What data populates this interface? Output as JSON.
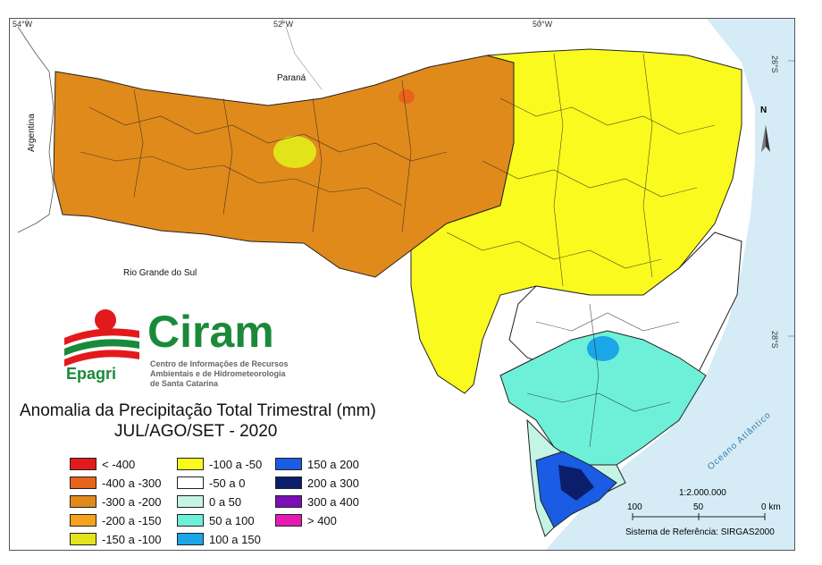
{
  "map": {
    "coord_labels": {
      "lon1": "54°W",
      "lon2": "52°W",
      "lon3": "50°W",
      "lat1": "26°S",
      "lat2": "28°S"
    },
    "places": {
      "parana": "Paraná",
      "argentina": "Argentina",
      "rio_grande": "Rio Grande do Sul",
      "ocean": "Oceano Atlântico"
    },
    "north": "N",
    "scale_text": "1:2.000.000",
    "scale_ticks": [
      "100",
      "50",
      "0 km"
    ],
    "reference_system": "Sistema de Referência: SIRGAS2000"
  },
  "logo": {
    "name": "Ciram",
    "brand": "Epagri",
    "line1": "Centro de Informações de Recursos",
    "line2": "Ambientais e de Hidrometeorologia",
    "line3": "de Santa Catarina"
  },
  "title": {
    "line1": "Anomalia da Precipitação Total Trimestral (mm)",
    "line2": "JUL/AGO/SET - 2020"
  },
  "legend": [
    {
      "label": "< -400",
      "color": "#e31a1c"
    },
    {
      "label": "-400 a -300",
      "color": "#e8641a"
    },
    {
      "label": "-300 a -200",
      "color": "#e08a1c"
    },
    {
      "label": "-200 a -150",
      "color": "#f5a21c"
    },
    {
      "label": "-150 a -100",
      "color": "#e3e31c"
    },
    {
      "label": "-100 a -50",
      "color": "#fafa1e"
    },
    {
      "label": "-50 a 0",
      "color": "#ffffff"
    },
    {
      "label": "0 a 50",
      "color": "#c4f5e4"
    },
    {
      "label": "50 a 100",
      "color": "#6ef0d8"
    },
    {
      "label": "100 a 150",
      "color": "#1aa6e8"
    },
    {
      "label": "150 a 200",
      "color": "#1a5ce3"
    },
    {
      "label": "200 a 300",
      "color": "#0a1e6b"
    },
    {
      "label": "300 a 400",
      "color": "#7a0fb3"
    },
    {
      "label": "> 400",
      "color": "#e61ab3"
    }
  ]
}
